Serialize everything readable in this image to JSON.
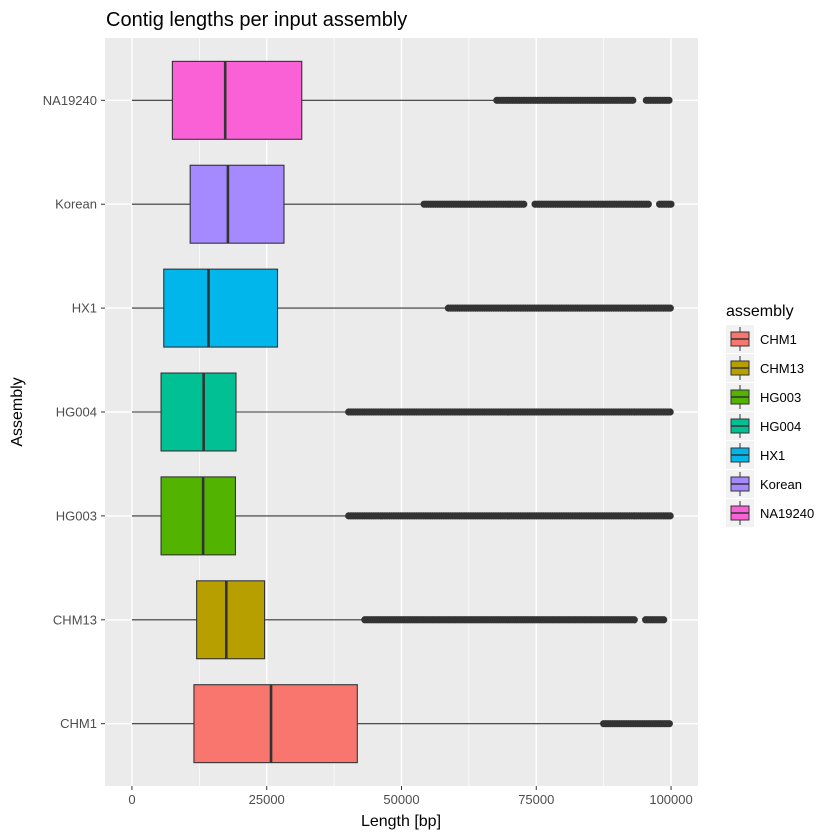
{
  "chart_data": {
    "type": "boxplot",
    "orientation": "horizontal",
    "title": "Contig lengths per input assembly",
    "xlabel": "Length [bp]",
    "ylabel": "Assembly",
    "xlim": [
      -5000,
      105000
    ],
    "x_ticks": [
      0,
      25000,
      50000,
      75000,
      100000
    ],
    "x_tick_labels": [
      "0",
      "25000",
      "50000",
      "75000",
      "100000"
    ],
    "grid": true,
    "legend": {
      "title": "assembly",
      "position": "right",
      "entries": [
        "CHM1",
        "CHM13",
        "HG003",
        "HG004",
        "HX1",
        "Korean",
        "NA19240"
      ]
    },
    "series": [
      {
        "name": "CHM1",
        "color": "#F8766D",
        "q1": 11500,
        "median": 25800,
        "q3": 41800,
        "whisker_low": 0,
        "whisker_high": 87000,
        "outliers_from": 87500,
        "outliers_to": 100000,
        "outlier_gaps": []
      },
      {
        "name": "CHM13",
        "color": "#B79F00",
        "q1": 12000,
        "median": 17500,
        "q3": 24600,
        "whisker_low": 0,
        "whisker_high": 43000,
        "outliers_from": 43200,
        "outliers_to": 99000,
        "outlier_gaps": [
          [
            93500,
            95000
          ]
        ]
      },
      {
        "name": "HG003",
        "color": "#53B400",
        "q1": 5400,
        "median": 13200,
        "q3": 19200,
        "whisker_low": 0,
        "whisker_high": 40000,
        "outliers_from": 40200,
        "outliers_to": 100000,
        "outlier_gaps": []
      },
      {
        "name": "HG004",
        "color": "#00C094",
        "q1": 5400,
        "median": 13300,
        "q3": 19300,
        "whisker_low": 0,
        "whisker_high": 40000,
        "outliers_from": 40200,
        "outliers_to": 100000,
        "outlier_gaps": []
      },
      {
        "name": "HX1",
        "color": "#00B6EB",
        "q1": 5900,
        "median": 14200,
        "q3": 27000,
        "whisker_low": 0,
        "whisker_high": 58500,
        "outliers_from": 58700,
        "outliers_to": 100000,
        "outlier_gaps": []
      },
      {
        "name": "Korean",
        "color": "#A58AFF",
        "q1": 10800,
        "median": 17800,
        "q3": 28200,
        "whisker_low": 0,
        "whisker_high": 54000,
        "outliers_from": 54200,
        "outliers_to": 100000,
        "outlier_gaps": [
          [
            73000,
            74500
          ],
          [
            96000,
            97500
          ]
        ]
      },
      {
        "name": "NA19240",
        "color": "#FB61D7",
        "q1": 7500,
        "median": 17300,
        "q3": 31500,
        "whisker_low": 0,
        "whisker_high": 67500,
        "outliers_from": 67700,
        "outliers_to": 100000,
        "outlier_gaps": [
          [
            93000,
            95000
          ]
        ]
      }
    ]
  }
}
